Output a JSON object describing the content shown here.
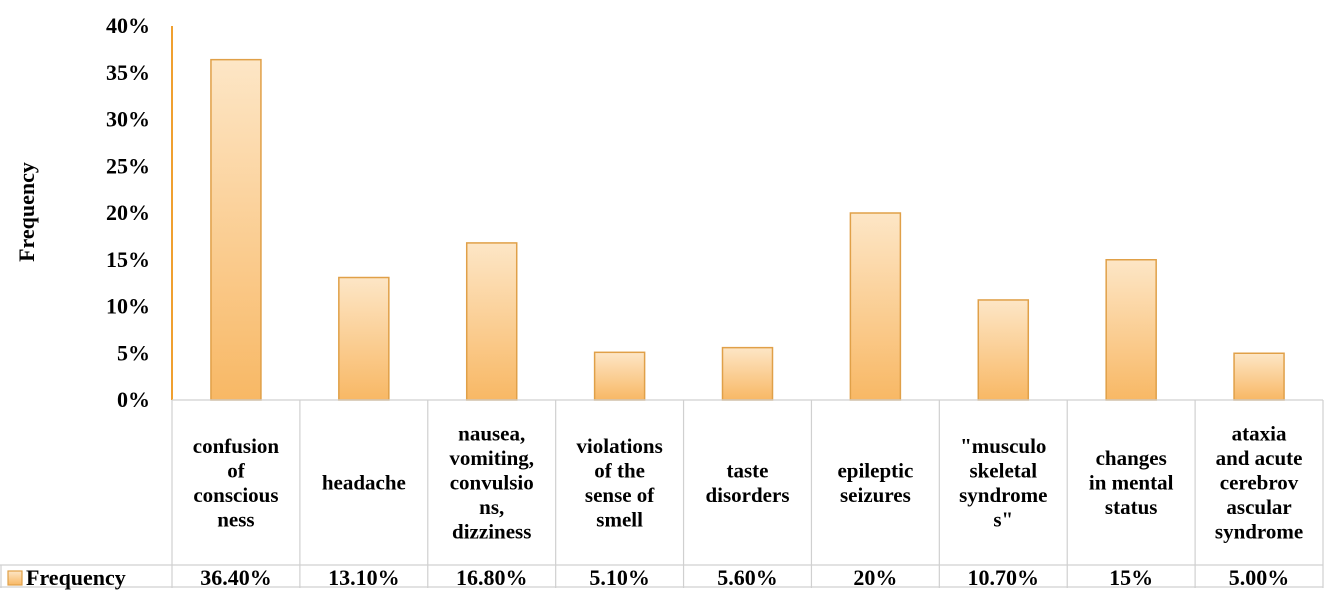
{
  "chart_data": {
    "type": "bar",
    "title": "",
    "xlabel": "",
    "ylabel": "Frequency",
    "ylim": [
      0,
      0.4
    ],
    "yticks": [
      0,
      0.05,
      0.1,
      0.15,
      0.2,
      0.25,
      0.3,
      0.35,
      0.4
    ],
    "ytick_labels": [
      "0%",
      "5%",
      "10%",
      "15%",
      "20%",
      "25%",
      "30%",
      "35%",
      "40%"
    ],
    "categories": [
      [
        "confusion",
        "of",
        "conscious",
        "ness"
      ],
      [
        "headache"
      ],
      [
        "nausea,",
        "vomiting,",
        "convulsio",
        "ns,",
        "dizziness"
      ],
      [
        "violations",
        "of the",
        "sense of",
        "smell"
      ],
      [
        "taste",
        "disorders"
      ],
      [
        "epileptic",
        "seizures"
      ],
      [
        "\"musculo",
        "skeletal",
        "syndrome",
        "s\""
      ],
      [
        "changes",
        "in mental",
        "status"
      ],
      [
        "ataxia",
        "and acute",
        "cerebrov",
        "ascular",
        "syndrome"
      ]
    ],
    "series": [
      {
        "name": "Frequency",
        "values": [
          0.364,
          0.131,
          0.168,
          0.051,
          0.056,
          0.2,
          0.107,
          0.15,
          0.05
        ],
        "labels": [
          "36.40%",
          "13.10%",
          "16.80%",
          "5.10%",
          "5.60%",
          "20%",
          "10.70%",
          "15%",
          "5.00%"
        ]
      }
    ],
    "legend": "data-table",
    "grid": false,
    "colors": {
      "bar_top": "#fde6c6",
      "bar_bottom": "#f8b865",
      "bar_border": "#e0a048",
      "axis": "#f0a030",
      "table_border": "#d0d0d0"
    }
  }
}
